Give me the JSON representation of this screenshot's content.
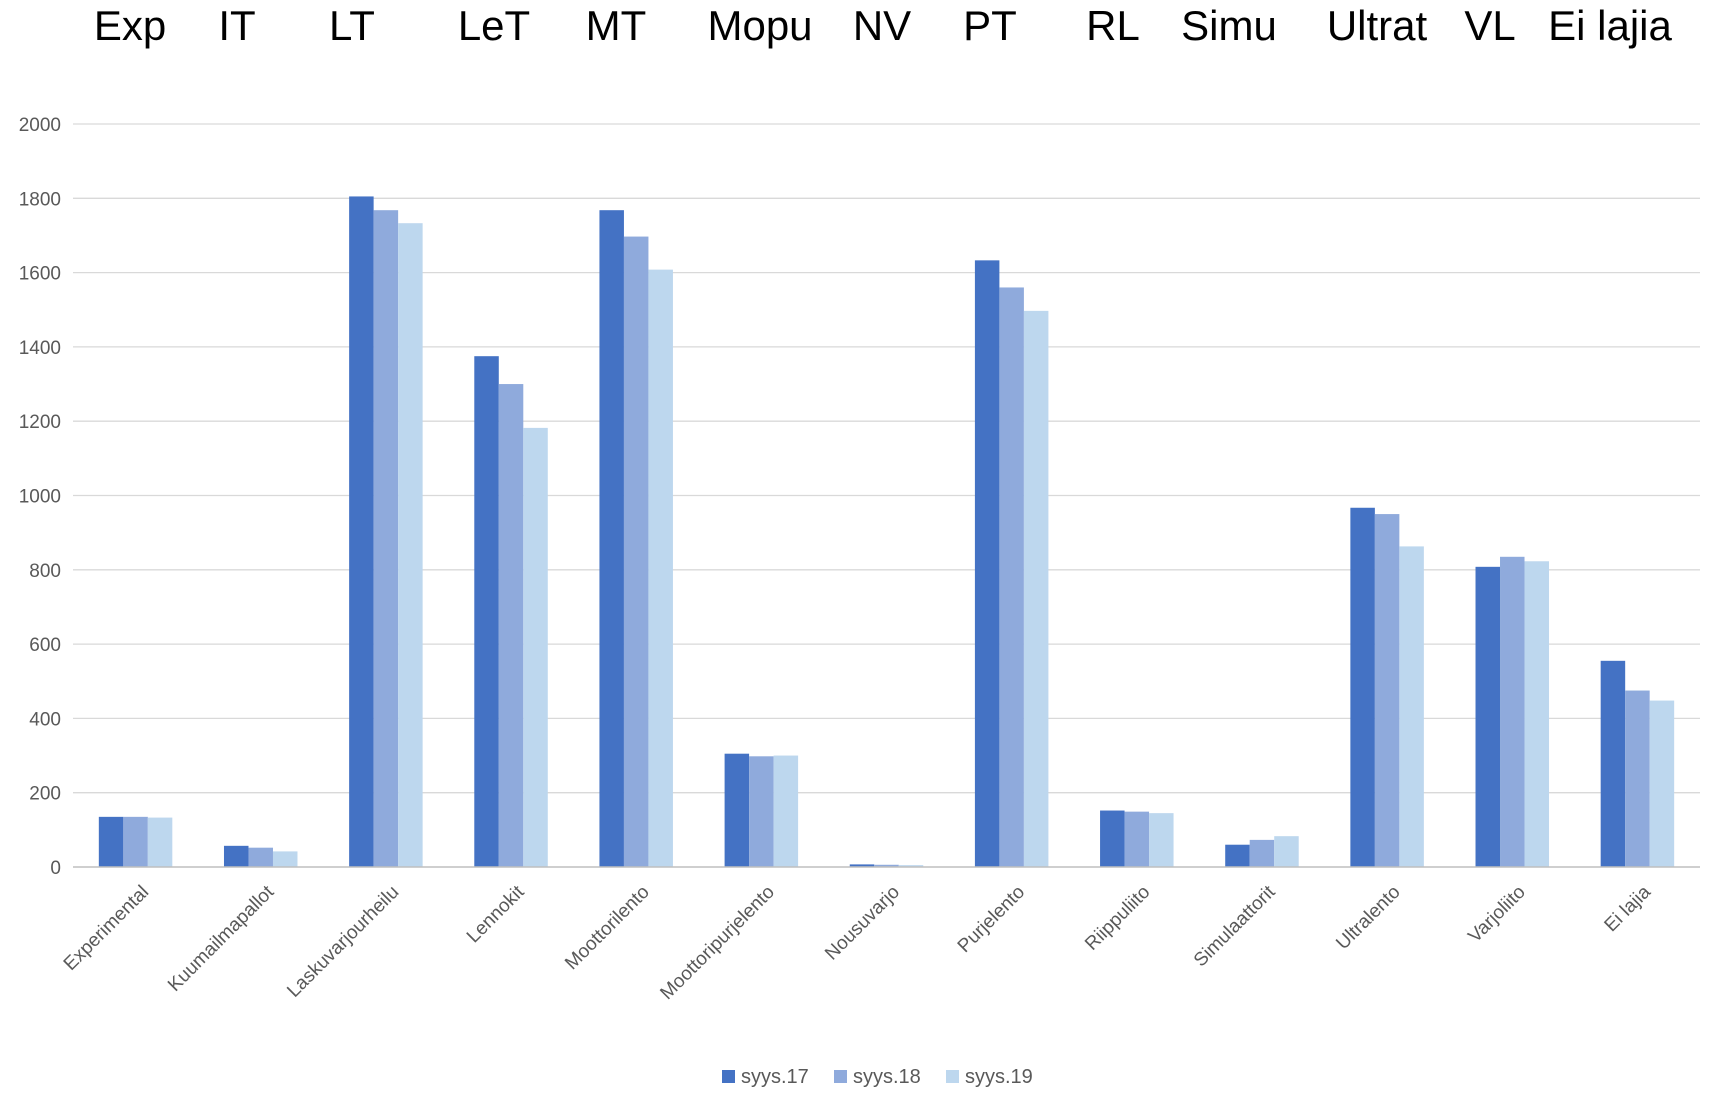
{
  "chart_data": {
    "type": "bar",
    "title": "",
    "xlabel": "",
    "ylabel": "",
    "top_labels": [
      "Exp",
      "IT",
      "LT",
      "LeT",
      "MT",
      "Mopu",
      "NV",
      "PT",
      "RL",
      "Simu",
      "Ultrat",
      "VL",
      "Ei lajia"
    ],
    "categories": [
      "Experimental",
      "Kuumailmapallot",
      "Laskuvarjourheilu",
      "Lennokit",
      "Moottorilento",
      "Moottoripurjelento",
      "Nousuvarjo",
      "Purjelento",
      "Riippuliito",
      "Simulaattorit",
      "Ultralento",
      "Varjoliito",
      "Ei lajia"
    ],
    "series": [
      {
        "name": "syys.17",
        "color": "#4472c4",
        "values": [
          135,
          57,
          1805,
          1375,
          1768,
          305,
          7,
          1633,
          152,
          60,
          967,
          808,
          555
        ]
      },
      {
        "name": "syys.18",
        "color": "#8faadc",
        "values": [
          135,
          52,
          1768,
          1300,
          1697,
          298,
          6,
          1560,
          149,
          73,
          950,
          835,
          475
        ]
      },
      {
        "name": "syys.19",
        "color": "#bdd7ee",
        "values": [
          133,
          42,
          1733,
          1182,
          1608,
          300,
          5,
          1497,
          145,
          83,
          863,
          823,
          448
        ]
      }
    ],
    "ylim": [
      0,
      2000
    ],
    "yticks": [
      0,
      200,
      400,
      600,
      800,
      1000,
      1200,
      1400,
      1600,
      1800,
      2000
    ],
    "grid": true,
    "legend_position": "bottom-center"
  }
}
